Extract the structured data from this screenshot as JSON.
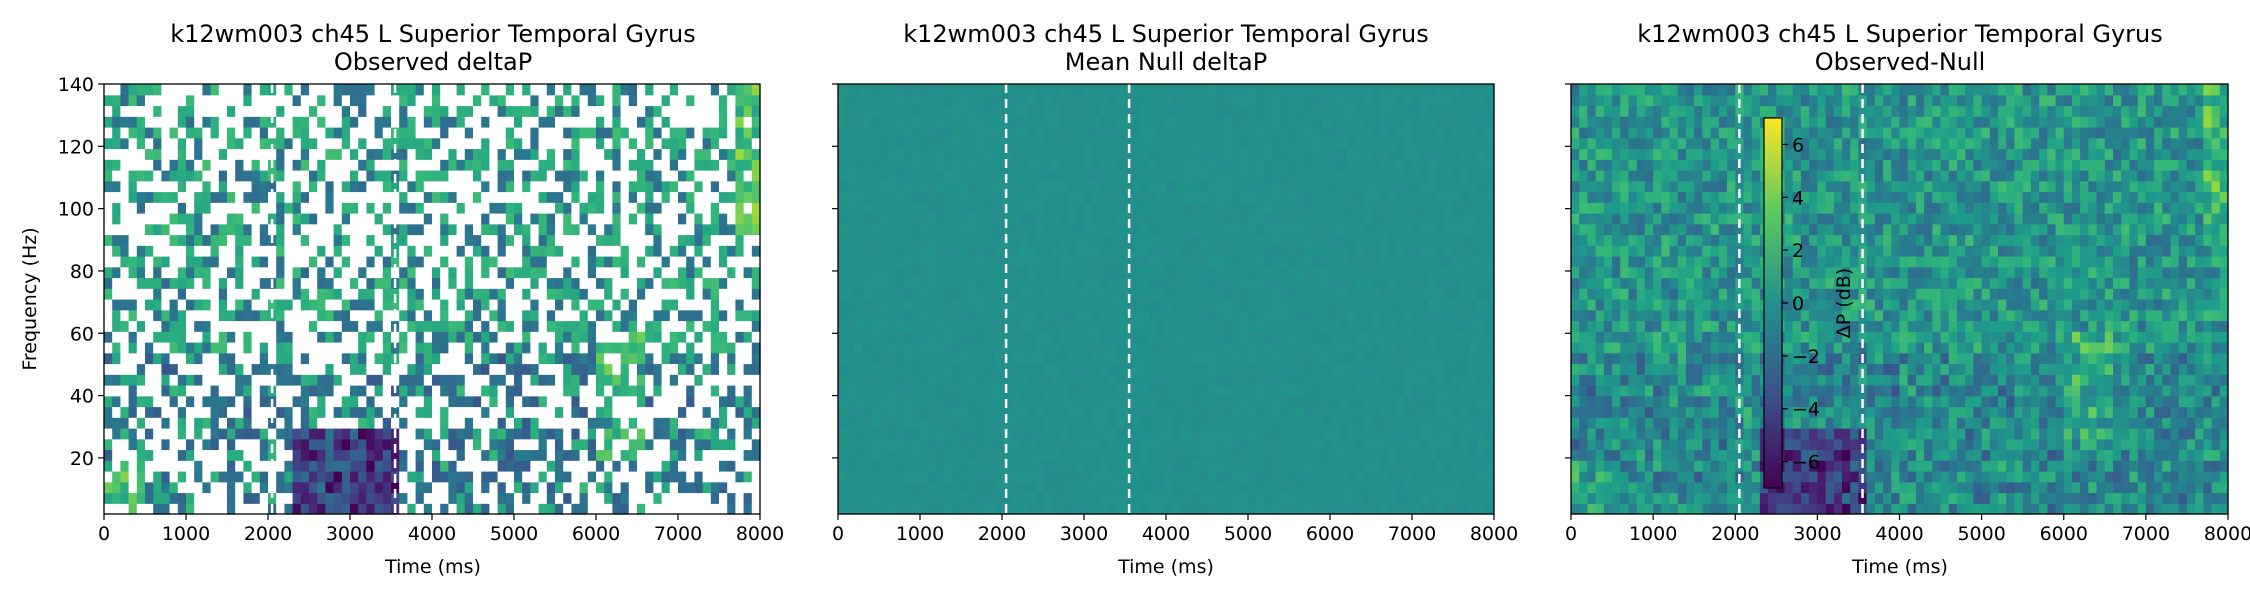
{
  "colors": {
    "colormap": "viridis",
    "marker_line": "#ffffff",
    "axes_frame": "#000000"
  },
  "chart_data": [
    {
      "type": "heatmap",
      "title": "k12wm003 ch45 L Superior Temporal Gyrus",
      "subtitle": "Observed deltaP",
      "xlabel": "Time (ms)",
      "ylabel": "Frequency (Hz)",
      "xlim": [
        0,
        8000
      ],
      "ylim": [
        2,
        140
      ],
      "xticks": [
        "0",
        "1000",
        "2000",
        "3000",
        "4000",
        "5000",
        "6000",
        "7000",
        "8000"
      ],
      "yticks": [
        "20",
        "40",
        "60",
        "80",
        "100",
        "120",
        "140"
      ],
      "event_lines_ms": [
        2050,
        3550
      ],
      "masked_nonsignificant": true
    },
    {
      "type": "heatmap",
      "title": "k12wm003 ch45 L Superior Temporal Gyrus",
      "subtitle": "Mean Null deltaP",
      "xlabel": "Time (ms)",
      "ylabel": "",
      "xlim": [
        0,
        8000
      ],
      "ylim": [
        2,
        140
      ],
      "xticks": [
        "0",
        "1000",
        "2000",
        "3000",
        "4000",
        "5000",
        "6000",
        "7000",
        "8000"
      ],
      "yticks": [],
      "event_lines_ms": [
        2050,
        3550
      ],
      "value_approx_db": 0
    },
    {
      "type": "heatmap",
      "title": "k12wm003 ch45 L Superior Temporal Gyrus",
      "subtitle": "Observed-Null",
      "xlabel": "Time (ms)",
      "ylabel": "",
      "xlim": [
        0,
        8000
      ],
      "ylim": [
        2,
        140
      ],
      "xticks": [
        "0",
        "1000",
        "2000",
        "3000",
        "4000",
        "5000",
        "6000",
        "7000",
        "8000"
      ],
      "yticks": [],
      "event_lines_ms": [
        2050,
        3550
      ],
      "colorbar": {
        "label": "ΔP (dB)",
        "range": [
          -7,
          7
        ],
        "ticks": [
          "6",
          "4",
          "2",
          "0",
          "−2",
          "−4",
          "−6"
        ]
      }
    }
  ]
}
